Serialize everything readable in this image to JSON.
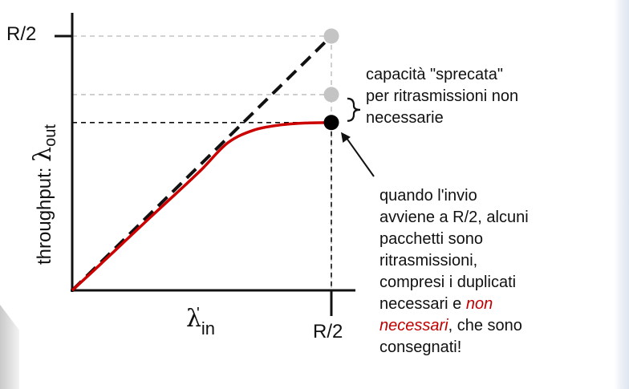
{
  "chart_data": {
    "type": "line",
    "y_axis": {
      "label_prefix": "throughput: ",
      "label_symbol": "λ",
      "label_subscript": "out",
      "tick_label": "R/2"
    },
    "x_axis": {
      "label_symbol": "λ",
      "label_prime": "'",
      "label_subscript": "in",
      "tick_label": "R/2"
    },
    "xlim": [
      0,
      0.5
    ],
    "ylim": [
      0,
      0.5
    ],
    "series": [
      {
        "style": "dashed",
        "color": "#111111",
        "x": [
          0,
          0.5
        ],
        "y": [
          0,
          0.5
        ]
      },
      {
        "style": "solid",
        "color": "#cc0000",
        "x": [
          0,
          0.05,
          0.1,
          0.15,
          0.2,
          0.25,
          0.3,
          0.35,
          0.4,
          0.45,
          0.5
        ],
        "y": [
          0,
          0.047,
          0.095,
          0.143,
          0.19,
          0.238,
          0.29,
          0.315,
          0.325,
          0.329,
          0.33
        ]
      }
    ],
    "points": [
      {
        "x": 0.5,
        "y": 0.5,
        "color": "#c4c4c4"
      },
      {
        "x": 0.5,
        "y": 0.385,
        "color": "#c4c4c4"
      },
      {
        "x": 0.5,
        "y": 0.33,
        "color": "#000000"
      }
    ],
    "guides": [
      {
        "y": 0.5,
        "color": "#c4c4c4"
      },
      {
        "y": 0.385,
        "color": "#c4c4c4"
      },
      {
        "y": 0.33,
        "color": "#111111"
      }
    ]
  },
  "annotations": {
    "wasted": {
      "lines": [
        "capacità \"sprecata\"",
        "per ritrasmissioni non",
        "necessarie"
      ]
    },
    "note": {
      "line1": "quando l'invio",
      "line2": "avviene a R/2, alcuni",
      "line3": "pacchetti sono",
      "line4": "ritrasmissioni,",
      "line5": "compresi i duplicati",
      "line6_prefix": "necessari e ",
      "line6_red": "non",
      "line7_red": "necessari",
      "line7_suffix": ", che sono",
      "line8": "consegnati!"
    }
  },
  "colors": {
    "curve": "#cc0000",
    "gray_point": "#c4c4c4",
    "axis": "#111111",
    "emphasis_text": "#c00000"
  }
}
